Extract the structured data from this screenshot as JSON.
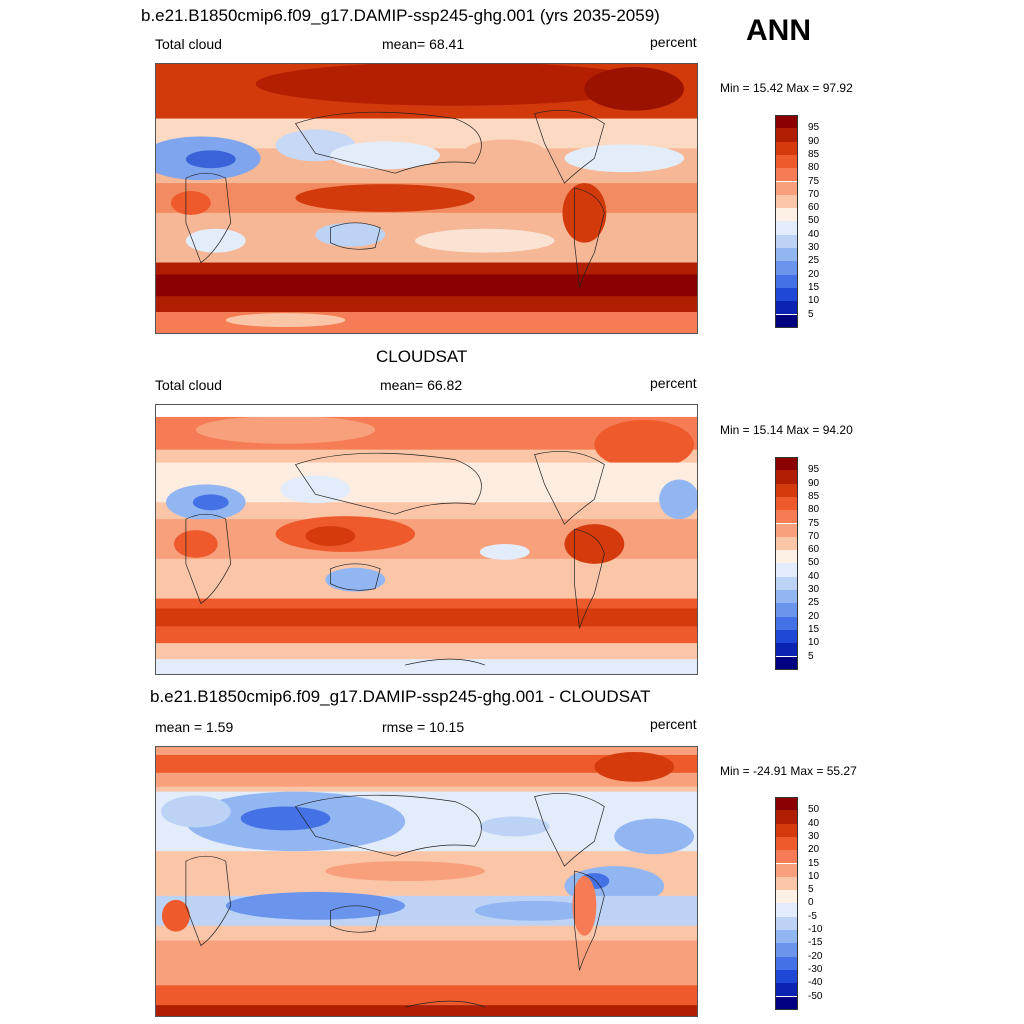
{
  "season": "ANN",
  "panels": [
    {
      "title": "b.e21.B1850cmip6.f09_g17.DAMIP-ssp245-ghg.001 (yrs 2035-2059)",
      "left_label": "Total cloud",
      "center_label": "mean=  68.41",
      "right_label": "percent",
      "minmax": "Min =  15.42 Max =  97.92",
      "colorbar_labels": [
        "95",
        "90",
        "85",
        "80",
        "75",
        "70",
        "60",
        "50",
        "40",
        "30",
        "25",
        "20",
        "15",
        "10",
        "5"
      ]
    },
    {
      "title": "CLOUDSAT",
      "left_label": "Total cloud",
      "center_label": "mean=  66.82",
      "right_label": "percent",
      "minmax": "Min =  15.14 Max =  94.20",
      "colorbar_labels": [
        "95",
        "90",
        "85",
        "80",
        "75",
        "70",
        "60",
        "50",
        "40",
        "30",
        "25",
        "20",
        "15",
        "10",
        "5"
      ]
    },
    {
      "title": "b.e21.B1850cmip6.f09_g17.DAMIP-ssp245-ghg.001 - CLOUDSAT",
      "left_label": "mean =   1.59",
      "center_label": "rmse =  10.15",
      "right_label": "percent",
      "minmax": "Min = -24.91 Max =  55.27",
      "colorbar_labels": [
        "50",
        "40",
        "30",
        "20",
        "15",
        "10",
        "5",
        "0",
        "-5",
        "-10",
        "-15",
        "-20",
        "-30",
        "-40",
        "-50"
      ]
    }
  ],
  "colorbar_colors": [
    "#8b0000",
    "#b01e00",
    "#d43a0c",
    "#ee5a2b",
    "#f57c54",
    "#f8a07c",
    "#fbc5a8",
    "#fdf0e4",
    "#e2ecfa",
    "#bcd3f6",
    "#92b6f2",
    "#6b95ec",
    "#4472e6",
    "#2048d6",
    "#0a23b0",
    "#000080"
  ]
}
